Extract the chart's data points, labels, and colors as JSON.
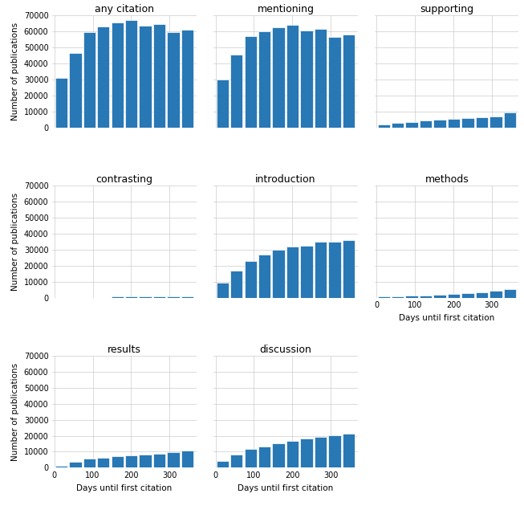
{
  "subplots": [
    {
      "title": "any citation",
      "values": [
        31000,
        46500,
        59500,
        63000,
        65500,
        67000,
        63500,
        64500,
        59500,
        61000
      ],
      "show_ylabel": true,
      "show_xlabel": false,
      "row": 0,
      "col": 0
    },
    {
      "title": "mentioning",
      "values": [
        30000,
        45500,
        57000,
        60000,
        62500,
        64000,
        60500,
        61500,
        56500,
        58000
      ],
      "show_ylabel": false,
      "show_xlabel": false,
      "row": 0,
      "col": 1
    },
    {
      "title": "supporting",
      "values": [
        2000,
        2800,
        3500,
        4500,
        5000,
        5500,
        6000,
        6200,
        7000,
        9500
      ],
      "show_ylabel": false,
      "show_xlabel": false,
      "row": 0,
      "col": 2
    },
    {
      "title": "contrasting",
      "values": [
        0,
        0,
        0,
        0,
        800,
        900,
        1000,
        1000,
        1000,
        1000
      ],
      "show_ylabel": true,
      "show_xlabel": false,
      "row": 1,
      "col": 0
    },
    {
      "title": "introduction",
      "values": [
        9500,
        17000,
        23000,
        27000,
        30000,
        32000,
        32500,
        35000,
        35000,
        36000
      ],
      "show_ylabel": false,
      "show_xlabel": false,
      "row": 1,
      "col": 1
    },
    {
      "title": "methods",
      "values": [
        700,
        1000,
        1200,
        1500,
        2000,
        2500,
        3000,
        3500,
        4500,
        5500
      ],
      "show_ylabel": false,
      "show_xlabel": true,
      "row": 1,
      "col": 2
    },
    {
      "title": "results",
      "values": [
        1200,
        3500,
        5500,
        6000,
        7000,
        7500,
        8000,
        8500,
        9500,
        10500
      ],
      "show_ylabel": true,
      "show_xlabel": true,
      "row": 2,
      "col": 0
    },
    {
      "title": "discussion",
      "values": [
        4000,
        8000,
        11500,
        13500,
        15500,
        17000,
        18500,
        19500,
        20500,
        21500
      ],
      "show_ylabel": false,
      "show_xlabel": true,
      "row": 2,
      "col": 1
    }
  ],
  "bar_color": "#2878b5",
  "bar_edge_color": "white",
  "ylim": [
    0,
    70000
  ],
  "yticks": [
    0,
    10000,
    20000,
    30000,
    40000,
    50000,
    60000,
    70000
  ],
  "xticks": [
    0,
    100,
    200,
    300
  ],
  "xlabel": "Days until first citation",
  "ylabel": "Number of publications",
  "grid_color": "#cccccc",
  "background_color": "white",
  "title_fontsize": 9,
  "tick_fontsize": 7,
  "label_fontsize": 7.5
}
